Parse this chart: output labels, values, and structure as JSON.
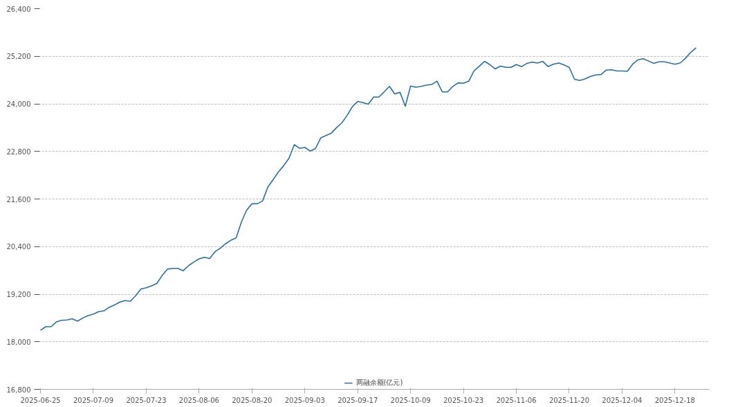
{
  "chart_data": {
    "type": "line",
    "categories": [
      "2025-06-25",
      null,
      null,
      null,
      null,
      null,
      null,
      null,
      null,
      null,
      "2025-07-09",
      null,
      null,
      null,
      null,
      null,
      null,
      null,
      null,
      null,
      "2025-07-23",
      null,
      null,
      null,
      null,
      null,
      null,
      null,
      null,
      null,
      "2025-08-06",
      null,
      null,
      null,
      null,
      null,
      null,
      null,
      null,
      null,
      "2025-08-20",
      null,
      null,
      null,
      null,
      null,
      null,
      null,
      null,
      null,
      "2025-09-03",
      null,
      null,
      null,
      null,
      null,
      null,
      null,
      null,
      null,
      "2025-09-17",
      null,
      null,
      null,
      null,
      null,
      null,
      null,
      null,
      null,
      "2025-10-09",
      null,
      null,
      null,
      null,
      null,
      null,
      null,
      null,
      null,
      "2025-10-23",
      null,
      null,
      null,
      null,
      null,
      null,
      null,
      null,
      null,
      "2025-11-06",
      null,
      null,
      null,
      null,
      null,
      null,
      null,
      null,
      null,
      "2025-11-20",
      null,
      null,
      null,
      null,
      null,
      null,
      null,
      null,
      null,
      "2025-12-04",
      null,
      null,
      null,
      null,
      null,
      null,
      null,
      null,
      null,
      "2025-12-18",
      null,
      null,
      null,
      null
    ],
    "series": [
      {
        "name": "两融余额(亿元)",
        "color": "#2e6f9a",
        "values": [
          18290,
          18380,
          18380,
          18500,
          18540,
          18550,
          18580,
          18520,
          18600,
          18660,
          18700,
          18760,
          18780,
          18870,
          18930,
          19000,
          19040,
          19020,
          19160,
          19330,
          19360,
          19410,
          19470,
          19670,
          19830,
          19850,
          19850,
          19790,
          19920,
          20010,
          20090,
          20130,
          20100,
          20270,
          20360,
          20470,
          20560,
          20620,
          21020,
          21320,
          21480,
          21480,
          21550,
          21900,
          22090,
          22280,
          22440,
          22630,
          22970,
          22880,
          22900,
          22810,
          22870,
          23140,
          23200,
          23260,
          23400,
          23520,
          23710,
          23930,
          24060,
          24030,
          23990,
          24170,
          24170,
          24300,
          24440,
          24250,
          24290,
          23940,
          24450,
          24420,
          24440,
          24470,
          24490,
          24570,
          24300,
          24300,
          24440,
          24530,
          24520,
          24570,
          24830,
          24950,
          25070,
          24990,
          24880,
          24950,
          24920,
          24920,
          24990,
          24940,
          25020,
          25050,
          25030,
          25070,
          24940,
          25000,
          25030,
          24980,
          24920,
          24620,
          24590,
          24630,
          24690,
          24730,
          24740,
          24850,
          24860,
          24830,
          24830,
          24820,
          25000,
          25110,
          25140,
          25080,
          25020,
          25060,
          25060,
          25030,
          25000,
          25030,
          25150,
          25300,
          25410
        ]
      }
    ],
    "ylim": [
      16800,
      26400
    ],
    "yticks": [
      {
        "value": 16800,
        "label": "16,800"
      },
      {
        "value": 18000,
        "label": "18,000"
      },
      {
        "value": 19200,
        "label": "19,200"
      },
      {
        "value": 20400,
        "label": "20,400"
      },
      {
        "value": 21600,
        "label": "21,600"
      },
      {
        "value": 22800,
        "label": "22,800"
      },
      {
        "value": 24000,
        "label": "24,000"
      },
      {
        "value": 25200,
        "label": "25,200"
      },
      {
        "value": 26400,
        "label": "26,400"
      }
    ],
    "grid": "y",
    "legend": "bottom",
    "marker": "none",
    "line_style": "solid"
  }
}
